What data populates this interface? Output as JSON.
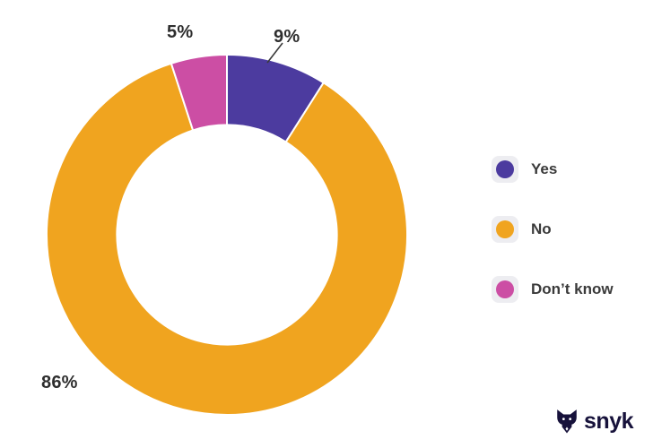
{
  "chart_data": {
    "type": "pie",
    "variant": "donut",
    "title": "",
    "categories": [
      "Yes",
      "No",
      "Don’t know"
    ],
    "segments": [
      {
        "label": "Yes",
        "value": 9,
        "percent_label": "9%",
        "color": "#4c3b9f"
      },
      {
        "label": "No",
        "value": 86,
        "percent_label": "86%",
        "color": "#f0a41f"
      },
      {
        "label": "Don’t know",
        "value": 5,
        "percent_label": "5%",
        "color": "#cc4ea4"
      }
    ],
    "start_angle_deg": 0,
    "direction": "clockwise",
    "inner_radius_ratio": 0.61,
    "legend_position": "right",
    "slice_gap_color": "#ffffff",
    "data_label_color": "#2e2e2e"
  },
  "branding": {
    "wordmark": "snyk",
    "color": "#17123b"
  }
}
